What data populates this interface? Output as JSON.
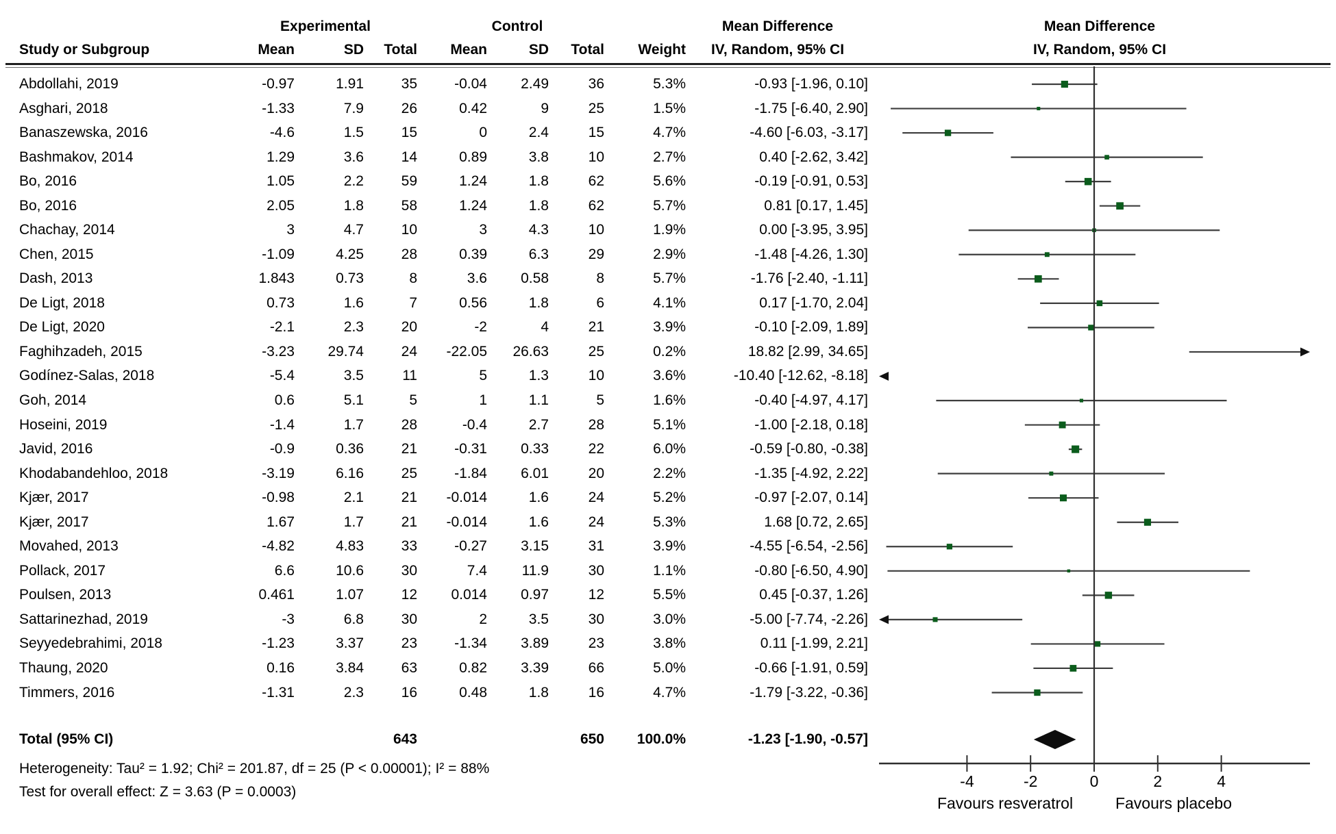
{
  "header": {
    "study_col": "Study or Subgroup",
    "group_experimental": "Experimental",
    "group_control": "Control",
    "mean_difference_text_col": "Mean Difference",
    "mean_difference_plot_col": "Mean Difference",
    "sub_mean1": "Mean",
    "sub_sd1": "SD",
    "sub_total1": "Total",
    "sub_mean2": "Mean",
    "sub_sd2": "SD",
    "sub_total2": "Total",
    "sub_weight": "Weight",
    "iv_random_text_col": "IV, Random, 95% CI",
    "iv_random_plot_col": "IV, Random, 95% CI"
  },
  "chart_data": {
    "type": "forest",
    "effect_measure": "Mean Difference",
    "model": "IV, Random, 95% CI",
    "studies": [
      {
        "name": "Abdollahi, 2019",
        "exp_mean": "-0.97",
        "exp_sd": "1.91",
        "exp_total": "35",
        "ctrl_mean": "-0.04",
        "ctrl_sd": "2.49",
        "ctrl_total": "36",
        "weight": "5.3%",
        "md": "-0.93 [-1.96, 0.10]",
        "est": -0.93,
        "lo": -1.96,
        "hi": 0.1,
        "w": 5.3
      },
      {
        "name": "Asghari, 2018",
        "exp_mean": "-1.33",
        "exp_sd": "7.9",
        "exp_total": "26",
        "ctrl_mean": "0.42",
        "ctrl_sd": "9",
        "ctrl_total": "25",
        "weight": "1.5%",
        "md": "-1.75 [-6.40, 2.90]",
        "est": -1.75,
        "lo": -6.4,
        "hi": 2.9,
        "w": 1.5
      },
      {
        "name": "Banaszewska, 2016",
        "exp_mean": "-4.6",
        "exp_sd": "1.5",
        "exp_total": "15",
        "ctrl_mean": "0",
        "ctrl_sd": "2.4",
        "ctrl_total": "15",
        "weight": "4.7%",
        "md": "-4.60 [-6.03, -3.17]",
        "est": -4.6,
        "lo": -6.03,
        "hi": -3.17,
        "w": 4.7
      },
      {
        "name": "Bashmakov, 2014",
        "exp_mean": "1.29",
        "exp_sd": "3.6",
        "exp_total": "14",
        "ctrl_mean": "0.89",
        "ctrl_sd": "3.8",
        "ctrl_total": "10",
        "weight": "2.7%",
        "md": "0.40 [-2.62, 3.42]",
        "est": 0.4,
        "lo": -2.62,
        "hi": 3.42,
        "w": 2.7
      },
      {
        "name": "Bo, 2016",
        "exp_mean": "1.05",
        "exp_sd": "2.2",
        "exp_total": "59",
        "ctrl_mean": "1.24",
        "ctrl_sd": "1.8",
        "ctrl_total": "62",
        "weight": "5.6%",
        "md": "-0.19 [-0.91, 0.53]",
        "est": -0.19,
        "lo": -0.91,
        "hi": 0.53,
        "w": 5.6
      },
      {
        "name": "Bo, 2016",
        "exp_mean": "2.05",
        "exp_sd": "1.8",
        "exp_total": "58",
        "ctrl_mean": "1.24",
        "ctrl_sd": "1.8",
        "ctrl_total": "62",
        "weight": "5.7%",
        "md": "0.81 [0.17, 1.45]",
        "est": 0.81,
        "lo": 0.17,
        "hi": 1.45,
        "w": 5.7
      },
      {
        "name": "Chachay, 2014",
        "exp_mean": "3",
        "exp_sd": "4.7",
        "exp_total": "10",
        "ctrl_mean": "3",
        "ctrl_sd": "4.3",
        "ctrl_total": "10",
        "weight": "1.9%",
        "md": "0.00 [-3.95, 3.95]",
        "est": 0.0,
        "lo": -3.95,
        "hi": 3.95,
        "w": 1.9
      },
      {
        "name": "Chen, 2015",
        "exp_mean": "-1.09",
        "exp_sd": "4.25",
        "exp_total": "28",
        "ctrl_mean": "0.39",
        "ctrl_sd": "6.3",
        "ctrl_total": "29",
        "weight": "2.9%",
        "md": "-1.48 [-4.26, 1.30]",
        "est": -1.48,
        "lo": -4.26,
        "hi": 1.3,
        "w": 2.9
      },
      {
        "name": "Dash, 2013",
        "exp_mean": "1.843",
        "exp_sd": "0.73",
        "exp_total": "8",
        "ctrl_mean": "3.6",
        "ctrl_sd": "0.58",
        "ctrl_total": "8",
        "weight": "5.7%",
        "md": "-1.76 [-2.40, -1.11]",
        "est": -1.76,
        "lo": -2.4,
        "hi": -1.11,
        "w": 5.7
      },
      {
        "name": "De Ligt, 2018",
        "exp_mean": "0.73",
        "exp_sd": "1.6",
        "exp_total": "7",
        "ctrl_mean": "0.56",
        "ctrl_sd": "1.8",
        "ctrl_total": "6",
        "weight": "4.1%",
        "md": "0.17 [-1.70, 2.04]",
        "est": 0.17,
        "lo": -1.7,
        "hi": 2.04,
        "w": 4.1
      },
      {
        "name": "De Ligt, 2020",
        "exp_mean": "-2.1",
        "exp_sd": "2.3",
        "exp_total": "20",
        "ctrl_mean": "-2",
        "ctrl_sd": "4",
        "ctrl_total": "21",
        "weight": "3.9%",
        "md": "-0.10 [-2.09, 1.89]",
        "est": -0.1,
        "lo": -2.09,
        "hi": 1.89,
        "w": 3.9
      },
      {
        "name": "Faghihzadeh, 2015",
        "exp_mean": "-3.23",
        "exp_sd": "29.74",
        "exp_total": "24",
        "ctrl_mean": "-22.05",
        "ctrl_sd": "26.63",
        "ctrl_total": "25",
        "weight": "0.2%",
        "md": "18.82 [2.99, 34.65]",
        "est": 18.82,
        "lo": 2.99,
        "hi": 34.65,
        "w": 0.2
      },
      {
        "name": "Godínez-Salas, 2018",
        "exp_mean": "-5.4",
        "exp_sd": "3.5",
        "exp_total": "11",
        "ctrl_mean": "5",
        "ctrl_sd": "1.3",
        "ctrl_total": "10",
        "weight": "3.6%",
        "md": "-10.40 [-12.62, -8.18]",
        "est": -10.4,
        "lo": -12.62,
        "hi": -8.18,
        "w": 3.6
      },
      {
        "name": "Goh, 2014",
        "exp_mean": "0.6",
        "exp_sd": "5.1",
        "exp_total": "5",
        "ctrl_mean": "1",
        "ctrl_sd": "1.1",
        "ctrl_total": "5",
        "weight": "1.6%",
        "md": "-0.40 [-4.97, 4.17]",
        "est": -0.4,
        "lo": -4.97,
        "hi": 4.17,
        "w": 1.6
      },
      {
        "name": "Hoseini, 2019",
        "exp_mean": "-1.4",
        "exp_sd": "1.7",
        "exp_total": "28",
        "ctrl_mean": "-0.4",
        "ctrl_sd": "2.7",
        "ctrl_total": "28",
        "weight": "5.1%",
        "md": "-1.00 [-2.18, 0.18]",
        "est": -1.0,
        "lo": -2.18,
        "hi": 0.18,
        "w": 5.1
      },
      {
        "name": "Javid, 2016",
        "exp_mean": "-0.9",
        "exp_sd": "0.36",
        "exp_total": "21",
        "ctrl_mean": "-0.31",
        "ctrl_sd": "0.33",
        "ctrl_total": "22",
        "weight": "6.0%",
        "md": "-0.59 [-0.80, -0.38]",
        "est": -0.59,
        "lo": -0.8,
        "hi": -0.38,
        "w": 6.0
      },
      {
        "name": "Khodabandehloo, 2018",
        "exp_mean": "-3.19",
        "exp_sd": "6.16",
        "exp_total": "25",
        "ctrl_mean": "-1.84",
        "ctrl_sd": "6.01",
        "ctrl_total": "20",
        "weight": "2.2%",
        "md": "-1.35 [-4.92, 2.22]",
        "est": -1.35,
        "lo": -4.92,
        "hi": 2.22,
        "w": 2.2
      },
      {
        "name": "Kjær, 2017",
        "exp_mean": "-0.98",
        "exp_sd": "2.1",
        "exp_total": "21",
        "ctrl_mean": "-0.014",
        "ctrl_sd": "1.6",
        "ctrl_total": "24",
        "weight": "5.2%",
        "md": "-0.97 [-2.07, 0.14]",
        "est": -0.97,
        "lo": -2.07,
        "hi": 0.14,
        "w": 5.2
      },
      {
        "name": "Kjær, 2017",
        "exp_mean": "1.67",
        "exp_sd": "1.7",
        "exp_total": "21",
        "ctrl_mean": "-0.014",
        "ctrl_sd": "1.6",
        "ctrl_total": "24",
        "weight": "5.3%",
        "md": "1.68 [0.72, 2.65]",
        "est": 1.68,
        "lo": 0.72,
        "hi": 2.65,
        "w": 5.3
      },
      {
        "name": "Movahed, 2013",
        "exp_mean": "-4.82",
        "exp_sd": "4.83",
        "exp_total": "33",
        "ctrl_mean": "-0.27",
        "ctrl_sd": "3.15",
        "ctrl_total": "31",
        "weight": "3.9%",
        "md": "-4.55 [-6.54, -2.56]",
        "est": -4.55,
        "lo": -6.54,
        "hi": -2.56,
        "w": 3.9
      },
      {
        "name": "Pollack, 2017",
        "exp_mean": "6.6",
        "exp_sd": "10.6",
        "exp_total": "30",
        "ctrl_mean": "7.4",
        "ctrl_sd": "11.9",
        "ctrl_total": "30",
        "weight": "1.1%",
        "md": "-0.80 [-6.50, 4.90]",
        "est": -0.8,
        "lo": -6.5,
        "hi": 4.9,
        "w": 1.1
      },
      {
        "name": "Poulsen, 2013",
        "exp_mean": "0.461",
        "exp_sd": "1.07",
        "exp_total": "12",
        "ctrl_mean": "0.014",
        "ctrl_sd": "0.97",
        "ctrl_total": "12",
        "weight": "5.5%",
        "md": "0.45 [-0.37, 1.26]",
        "est": 0.45,
        "lo": -0.37,
        "hi": 1.26,
        "w": 5.5
      },
      {
        "name": "Sattarinezhad, 2019",
        "exp_mean": "-3",
        "exp_sd": "6.8",
        "exp_total": "30",
        "ctrl_mean": "2",
        "ctrl_sd": "3.5",
        "ctrl_total": "30",
        "weight": "3.0%",
        "md": "-5.00 [-7.74, -2.26]",
        "est": -5.0,
        "lo": -7.74,
        "hi": -2.26,
        "w": 3.0
      },
      {
        "name": "Seyyedebrahimi, 2018",
        "exp_mean": "-1.23",
        "exp_sd": "3.37",
        "exp_total": "23",
        "ctrl_mean": "-1.34",
        "ctrl_sd": "3.89",
        "ctrl_total": "23",
        "weight": "3.8%",
        "md": "0.11 [-1.99, 2.21]",
        "est": 0.11,
        "lo": -1.99,
        "hi": 2.21,
        "w": 3.8
      },
      {
        "name": "Thaung, 2020",
        "exp_mean": "0.16",
        "exp_sd": "3.84",
        "exp_total": "63",
        "ctrl_mean": "0.82",
        "ctrl_sd": "3.39",
        "ctrl_total": "66",
        "weight": "5.0%",
        "md": "-0.66 [-1.91, 0.59]",
        "est": -0.66,
        "lo": -1.91,
        "hi": 0.59,
        "w": 5.0
      },
      {
        "name": "Timmers, 2016",
        "exp_mean": "-1.31",
        "exp_sd": "2.3",
        "exp_total": "16",
        "ctrl_mean": "0.48",
        "ctrl_sd": "1.8",
        "ctrl_total": "16",
        "weight": "4.7%",
        "md": "-1.79 [-3.22, -0.36]",
        "est": -1.79,
        "lo": -3.22,
        "hi": -0.36,
        "w": 4.7
      }
    ],
    "total": {
      "label": "Total (95% CI)",
      "exp_total": "643",
      "ctrl_total": "650",
      "weight": "100.0%",
      "md": "-1.23 [-1.90, -0.57]",
      "est": -1.23,
      "lo": -1.9,
      "hi": -0.57
    },
    "heterogeneity": "Heterogeneity: Tau² = 1.92; Chi² = 201.87, df = 25 (P < 0.00001); I² = 88%",
    "overall_effect": "Test for overall effect: Z = 3.63 (P = 0.0003)",
    "axis": {
      "ticks": [
        -4,
        -2,
        0,
        2,
        4
      ],
      "tick_labels": [
        "-4",
        "-2",
        "0",
        "2",
        "4"
      ],
      "min": -6.77,
      "max": 6.79,
      "label_left": "Favours resveratrol",
      "label_right": "Favours placebo"
    },
    "colors": {
      "square": "#0b5c1c",
      "ci_line": "#3d3d3d",
      "axis": "#2e2e2e",
      "diamond": "#0d0d0d"
    }
  }
}
